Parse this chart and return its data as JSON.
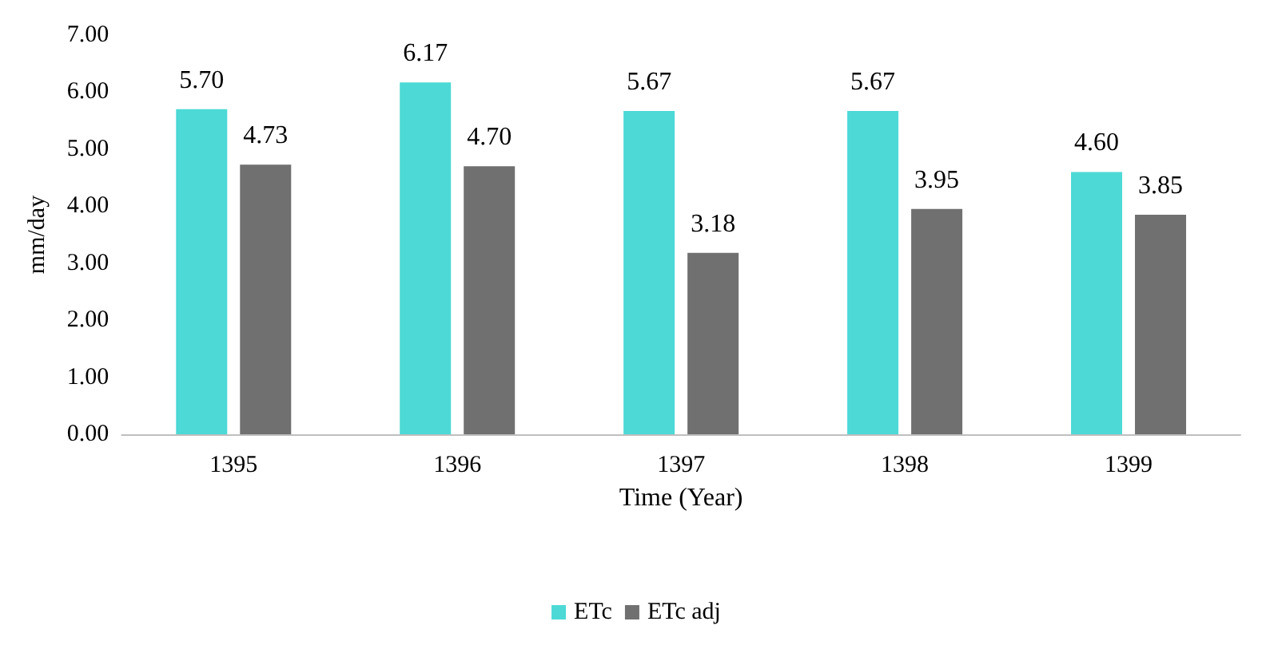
{
  "chart_data": {
    "type": "bar",
    "xlabel": "Time (Year)",
    "ylabel": "mm/day",
    "categories": [
      "1395",
      "1396",
      "1397",
      "1398",
      "1399"
    ],
    "series": [
      {
        "name": "ETc",
        "color": "#4dd9d6",
        "values": [
          5.7,
          6.17,
          5.67,
          5.67,
          4.6
        ],
        "value_labels": [
          "5.70",
          "6.17",
          "5.67",
          "5.67",
          "4.60"
        ]
      },
      {
        "name": "ETc adj",
        "color": "#707070",
        "values": [
          4.73,
          4.7,
          3.18,
          3.95,
          3.85
        ],
        "value_labels": [
          "4.73",
          "4.70",
          "3.18",
          "3.95",
          "3.85"
        ]
      }
    ],
    "ylim": [
      0,
      7
    ],
    "yticks": [
      {
        "value": 0,
        "label": "0.00"
      },
      {
        "value": 1,
        "label": "1.00"
      },
      {
        "value": 2,
        "label": "2.00"
      },
      {
        "value": 3,
        "label": "3.00"
      },
      {
        "value": 4,
        "label": "4.00"
      },
      {
        "value": 5,
        "label": "5.00"
      },
      {
        "value": 6,
        "label": "6.00"
      },
      {
        "value": 7,
        "label": "7.00"
      }
    ],
    "grid": false,
    "legend": "bottom"
  }
}
